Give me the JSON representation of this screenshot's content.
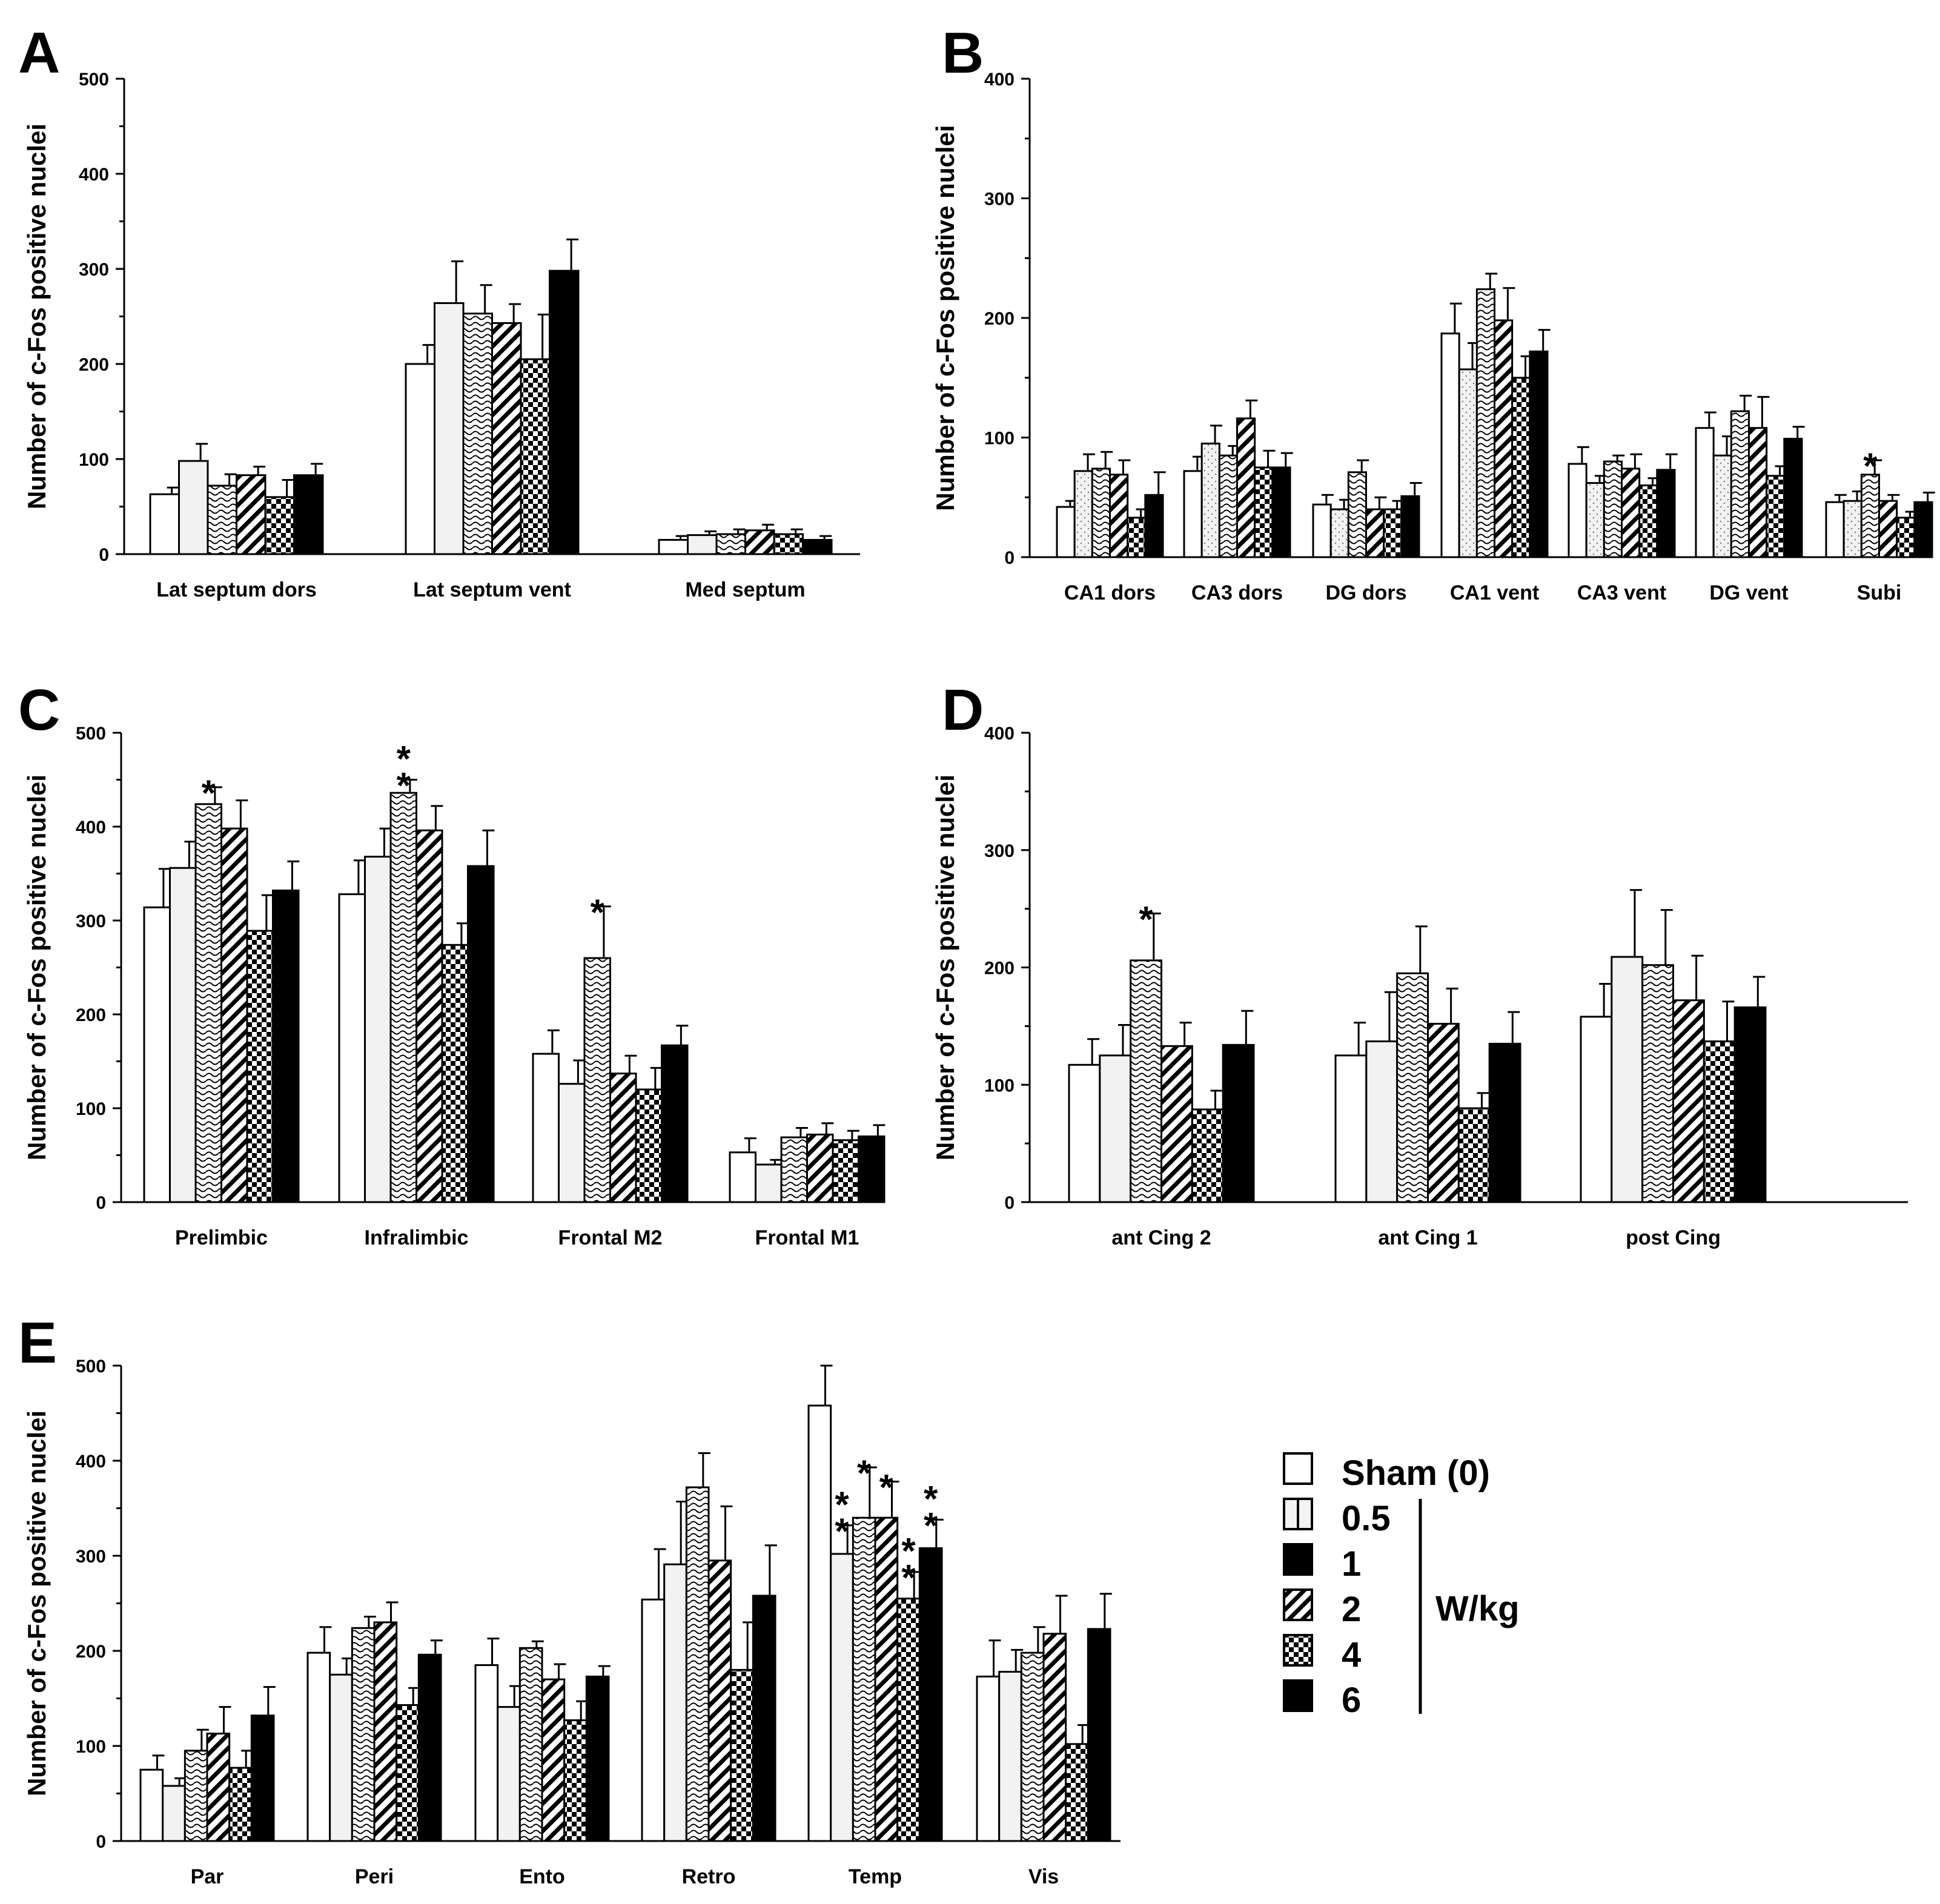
{
  "figure": {
    "legend": {
      "items": [
        "Sham (0)",
        "0.5",
        "1",
        "2",
        "4",
        "6"
      ],
      "unit": "W/kg"
    }
  },
  "chart_data": [
    {
      "panel": "A",
      "type": "bar",
      "ylabel": "Number of c-Fos positive nuclei",
      "ylim": [
        0,
        500
      ],
      "yticks": [
        0,
        100,
        200,
        300,
        400,
        500
      ],
      "categories": [
        "Lat septum dors",
        "Lat septum vent",
        "Med septum"
      ],
      "series": [
        {
          "name": "Sham (0)",
          "values": [
            63,
            200,
            15
          ],
          "errors": [
            7,
            20,
            4
          ]
        },
        {
          "name": "0.5",
          "values": [
            98,
            264,
            20
          ],
          "errors": [
            18,
            44,
            4
          ]
        },
        {
          "name": "1",
          "values": [
            72,
            253,
            21
          ],
          "errors": [
            12,
            30,
            5
          ]
        },
        {
          "name": "2",
          "values": [
            83,
            243,
            25
          ],
          "errors": [
            9,
            20,
            6
          ]
        },
        {
          "name": "4",
          "values": [
            60,
            205,
            21
          ],
          "errors": [
            18,
            47,
            5
          ]
        },
        {
          "name": "6",
          "values": [
            83,
            298,
            15
          ],
          "errors": [
            12,
            33,
            4
          ]
        }
      ],
      "significance": []
    },
    {
      "panel": "B",
      "type": "bar",
      "ylabel": "Number of c-Fos positive nuclei",
      "ylim": [
        0,
        400
      ],
      "yticks": [
        0,
        100,
        200,
        300,
        400
      ],
      "categories": [
        "CA1 dors",
        "CA3 dors",
        "DG dors",
        "CA1 vent",
        "CA3 vent",
        "DG vent",
        "Subi"
      ],
      "series": [
        {
          "name": "Sham (0)",
          "values": [
            42,
            72,
            44,
            187,
            78,
            108,
            46
          ],
          "errors": [
            5,
            12,
            8,
            25,
            14,
            13,
            6
          ]
        },
        {
          "name": "0.5",
          "values": [
            72,
            95,
            40,
            157,
            62,
            85,
            47
          ],
          "errors": [
            14,
            15,
            8,
            22,
            6,
            16,
            8
          ]
        },
        {
          "name": "1",
          "values": [
            74,
            85,
            71,
            224,
            80,
            122,
            69
          ],
          "errors": [
            14,
            8,
            10,
            13,
            5,
            13,
            12
          ]
        },
        {
          "name": "2",
          "values": [
            69,
            116,
            40,
            198,
            74,
            108,
            47
          ],
          "errors": [
            12,
            15,
            10,
            27,
            12,
            26,
            5
          ]
        },
        {
          "name": "4",
          "values": [
            33,
            75,
            40,
            150,
            60,
            68,
            33
          ],
          "errors": [
            7,
            14,
            7,
            18,
            6,
            8,
            5
          ]
        },
        {
          "name": "6",
          "values": [
            52,
            75,
            51,
            172,
            73,
            99,
            46
          ],
          "errors": [
            19,
            12,
            11,
            18,
            13,
            10,
            8
          ]
        }
      ],
      "significance": [
        {
          "category": "Subi",
          "series": "1",
          "label": "*"
        }
      ]
    },
    {
      "panel": "C",
      "type": "bar",
      "ylabel": "Number of c-Fos positive nuclei",
      "ylim": [
        0,
        500
      ],
      "yticks": [
        0,
        100,
        200,
        300,
        400,
        500
      ],
      "categories": [
        "Prelimbic",
        "Infralimbic",
        "Frontal M2",
        "Frontal M1"
      ],
      "series": [
        {
          "name": "Sham (0)",
          "values": [
            314,
            328,
            158,
            53
          ],
          "errors": [
            41,
            36,
            25,
            15
          ]
        },
        {
          "name": "0.5",
          "values": [
            356,
            368,
            126,
            40
          ],
          "errors": [
            28,
            30,
            25,
            5
          ]
        },
        {
          "name": "1",
          "values": [
            424,
            436,
            260,
            69
          ],
          "errors": [
            18,
            14,
            55,
            10
          ]
        },
        {
          "name": "2",
          "values": [
            398,
            396,
            137,
            72
          ],
          "errors": [
            30,
            26,
            19,
            12
          ]
        },
        {
          "name": "4",
          "values": [
            289,
            274,
            120,
            66
          ],
          "errors": [
            38,
            23,
            23,
            10
          ]
        },
        {
          "name": "6",
          "values": [
            332,
            358,
            167,
            70
          ],
          "errors": [
            31,
            38,
            21,
            12
          ]
        }
      ],
      "significance": [
        {
          "category": "Prelimbic",
          "series": "1",
          "label": "*"
        },
        {
          "category": "Infralimbic",
          "series": "1",
          "label": "**"
        },
        {
          "category": "Frontal M2",
          "series": "1",
          "label": "*"
        }
      ]
    },
    {
      "panel": "D",
      "type": "bar",
      "ylabel": "Number of c-Fos positive nuclei",
      "ylim": [
        0,
        400
      ],
      "yticks": [
        0,
        100,
        200,
        300,
        400
      ],
      "categories": [
        "ant Cing 2",
        "ant Cing 1",
        "post Cing"
      ],
      "series": [
        {
          "name": "Sham (0)",
          "values": [
            117,
            125,
            158
          ],
          "errors": [
            22,
            28,
            28
          ]
        },
        {
          "name": "0.5",
          "values": [
            125,
            137,
            209
          ],
          "errors": [
            26,
            42,
            57
          ]
        },
        {
          "name": "1",
          "values": [
            206,
            195,
            202
          ],
          "errors": [
            40,
            40,
            47
          ]
        },
        {
          "name": "2",
          "values": [
            133,
            152,
            172
          ],
          "errors": [
            20,
            30,
            38
          ]
        },
        {
          "name": "4",
          "values": [
            79,
            80,
            137
          ],
          "errors": [
            16,
            13,
            34
          ]
        },
        {
          "name": "6",
          "values": [
            134,
            135,
            166
          ],
          "errors": [
            29,
            27,
            26
          ]
        }
      ],
      "significance": [
        {
          "category": "ant Cing 2",
          "series": "1",
          "label": "*"
        }
      ]
    },
    {
      "panel": "E",
      "type": "bar",
      "ylabel": "Number of c-Fos positive nuclei",
      "ylim": [
        0,
        500
      ],
      "yticks": [
        0,
        100,
        200,
        300,
        400,
        500
      ],
      "categories": [
        "Par",
        "Peri",
        "Ento",
        "Retro",
        "Temp",
        "Vis"
      ],
      "series": [
        {
          "name": "Sham (0)",
          "values": [
            75,
            198,
            185,
            254,
            458,
            173
          ],
          "errors": [
            15,
            27,
            28,
            53,
            42,
            38
          ]
        },
        {
          "name": "0.5",
          "values": [
            58,
            175,
            141,
            291,
            302,
            178
          ],
          "errors": [
            8,
            17,
            22,
            66,
            30,
            23
          ]
        },
        {
          "name": "1",
          "values": [
            95,
            224,
            203,
            372,
            340,
            198
          ],
          "errors": [
            22,
            12,
            7,
            36,
            53,
            27
          ]
        },
        {
          "name": "2",
          "values": [
            113,
            230,
            170,
            295,
            340,
            218
          ],
          "errors": [
            28,
            21,
            16,
            57,
            38,
            40
          ]
        },
        {
          "name": "4",
          "values": [
            77,
            143,
            127,
            180,
            255,
            102
          ],
          "errors": [
            18,
            18,
            20,
            50,
            28,
            20
          ]
        },
        {
          "name": "6",
          "values": [
            132,
            196,
            173,
            258,
            308,
            223
          ],
          "errors": [
            30,
            15,
            11,
            53,
            30,
            37
          ]
        }
      ],
      "significance": [
        {
          "category": "Temp",
          "series": "0.5",
          "label": "**"
        },
        {
          "category": "Temp",
          "series": "1",
          "label": "*"
        },
        {
          "category": "Temp",
          "series": "2",
          "label": "*"
        },
        {
          "category": "Temp",
          "series": "4",
          "label": "**"
        },
        {
          "category": "Temp",
          "series": "6",
          "label": "**"
        }
      ]
    }
  ]
}
